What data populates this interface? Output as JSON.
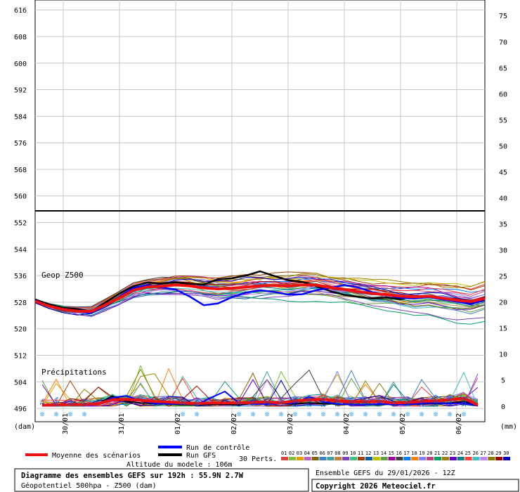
{
  "chart_data": {
    "type": "line",
    "title": "Diagramme des ensembles GEFS sur 192h : 55.9N 2.7W",
    "subtitle": "Géopotentiel 500hpa - Z500 (dam)",
    "run_label": "Ensemble GEFS du 29/01/2026 - 12Z",
    "copyright": "Copyright 2026 Meteociel.fr",
    "altitude_note": "Altitude du modele : 106m",
    "y_unit_left": "(dam)",
    "y_unit_right": "(mm)",
    "geop_label": "Geop Z500",
    "precip_label": "Précipitations",
    "left_axis": {
      "ticks": [
        496,
        504,
        512,
        520,
        528,
        536,
        544,
        552,
        560,
        568,
        576,
        584,
        592,
        600,
        608,
        616
      ],
      "range": [
        492,
        619
      ]
    },
    "right_axis": {
      "ticks": [
        0,
        5,
        10,
        15,
        20,
        25,
        30,
        35,
        40,
        45,
        50,
        55,
        60,
        65,
        70,
        75
      ],
      "range": [
        -3,
        78
      ]
    },
    "x_axis": {
      "labels": [
        "30/01",
        "31/01",
        "01/02",
        "02/02",
        "03/02",
        "04/02",
        "05/02",
        "06/02"
      ],
      "range_hours": [
        0,
        192
      ]
    },
    "grid": true,
    "legend": {
      "mean": "Moyenne des scénarios",
      "control": "Run de contrôle",
      "gfs": "Run GFS",
      "perts": "30 Perts.",
      "pert_ids": [
        "01",
        "02",
        "03",
        "04",
        "05",
        "06",
        "07",
        "08",
        "09",
        "10",
        "11",
        "12",
        "13",
        "14",
        "15",
        "16",
        "17",
        "18",
        "19",
        "20",
        "21",
        "22",
        "23",
        "24",
        "25",
        "26",
        "27",
        "28",
        "29",
        "30"
      ],
      "pert_colors": [
        "#e04040",
        "#80c040",
        "#e0a000",
        "#c060c0",
        "#806000",
        "#4080c0",
        "#40a0a0",
        "#c08040",
        "#8040c0",
        "#40c080",
        "#a04000",
        "#0060a0",
        "#c0c000",
        "#60a040",
        "#a000a0",
        "#404040",
        "#0080ff",
        "#ff8000",
        "#8080ff",
        "#c04080",
        "#00a060",
        "#a08000",
        "#6000c0",
        "#008080",
        "#ff4040",
        "#40c0c0",
        "#c080ff",
        "#808000",
        "#a00000",
        "#0000c0"
      ]
    },
    "snow": {
      "label_prefix": "❄",
      "items": [
        {
          "hour": 3,
          "pct": "3%"
        },
        {
          "hour": 9,
          "pct": "29%"
        },
        {
          "hour": 15,
          "pct": "6%"
        },
        {
          "hour": 21,
          "pct": "6%"
        },
        {
          "hour": 63,
          "pct": "3%"
        },
        {
          "hour": 69,
          "pct": "6%"
        },
        {
          "hour": 87,
          "pct": "3%"
        },
        {
          "hour": 93,
          "pct": "6%"
        },
        {
          "hour": 99,
          "pct": "16%"
        },
        {
          "hour": 105,
          "pct": "16%"
        },
        {
          "hour": 111,
          "pct": "29%"
        },
        {
          "hour": 117,
          "pct": "23%"
        },
        {
          "hour": 123,
          "pct": "23%"
        },
        {
          "hour": 129,
          "pct": "19%"
        },
        {
          "hour": 135,
          "pct": "10%"
        },
        {
          "hour": 141,
          "pct": "10%"
        },
        {
          "hour": 147,
          "pct": "16%"
        },
        {
          "hour": 153,
          "pct": "10%"
        },
        {
          "hour": 159,
          "pct": "16%"
        },
        {
          "hour": 165,
          "pct": "29%"
        },
        {
          "hour": 171,
          "pct": "26%"
        },
        {
          "hour": 177,
          "pct": "32%"
        },
        {
          "hour": 183,
          "pct": "32%"
        }
      ]
    },
    "series": [
      {
        "name": "Moyenne des scénarios",
        "color": "#ee1111",
        "x": [
          0,
          6,
          12,
          18,
          24,
          30,
          36,
          42,
          48,
          54,
          60,
          66,
          72,
          78,
          84,
          90,
          96,
          102,
          108,
          114,
          120,
          126,
          132,
          138,
          144,
          150,
          156,
          162,
          168,
          174,
          180,
          186,
          192
        ],
        "values": [
          528.3,
          526.8,
          525.8,
          525.3,
          525.2,
          527.2,
          529.3,
          531.6,
          532.6,
          532.8,
          533.2,
          532.9,
          532.3,
          532.0,
          532.2,
          532.6,
          532.9,
          533.0,
          532.9,
          533.2,
          533.2,
          532.4,
          531.8,
          531.2,
          530.6,
          530.3,
          529.8,
          529.6,
          529.8,
          529.2,
          528.6,
          528.2,
          529.1
        ]
      },
      {
        "name": "Run de contrôle",
        "color": "#0000ff",
        "x": [
          0,
          6,
          12,
          18,
          24,
          30,
          36,
          42,
          48,
          54,
          60,
          66,
          72,
          78,
          84,
          90,
          96,
          102,
          108,
          114,
          120,
          126,
          132,
          138,
          144,
          150,
          156,
          162,
          168,
          174,
          180,
          186,
          192
        ],
        "values": [
          528.6,
          526.9,
          525.6,
          525.2,
          524.7,
          527.1,
          529.7,
          532.3,
          533.2,
          532.4,
          531.8,
          529.7,
          527.1,
          527.6,
          529.5,
          530.9,
          531.6,
          531.1,
          530.3,
          530.4,
          531.6,
          532.3,
          533.2,
          532.4,
          531.0,
          530.2,
          529.3,
          529.1,
          529.5,
          528.8,
          528.2,
          527.4,
          528.7
        ]
      },
      {
        "name": "Run GFS",
        "color": "#000000",
        "x": [
          0,
          6,
          12,
          18,
          24,
          30,
          36,
          42,
          48,
          54,
          60,
          66,
          72,
          78,
          84,
          90,
          96,
          102,
          108,
          114,
          120,
          126,
          132,
          138,
          144,
          150,
          156,
          162,
          168,
          174,
          180,
          186,
          192
        ],
        "values": [
          528.8,
          527.3,
          526.3,
          525.9,
          525.2,
          527.9,
          530.6,
          532.8,
          533.9,
          533.6,
          534.0,
          533.5,
          533.3,
          534.9,
          535.2,
          536.0,
          537.3,
          535.9,
          534.6,
          534.1,
          532.9,
          531.3,
          530.2,
          529.6,
          529.1,
          529.4,
          528.9,
          529.8,
          529.9,
          529.3,
          528.6,
          527.6,
          529.4
        ]
      }
    ],
    "precip_series": [
      {
        "name": "Moyenne des scénarios",
        "color": "#ee1111",
        "x": [
          3,
          9,
          15,
          21,
          27,
          33,
          39,
          45,
          51,
          57,
          63,
          69,
          75,
          81,
          87,
          93,
          99,
          105,
          111,
          117,
          123,
          129,
          135,
          141,
          147,
          153,
          159,
          165,
          171,
          177,
          183,
          189
        ],
        "values": [
          0.2,
          0.2,
          0.3,
          0.3,
          0.5,
          1.2,
          1.3,
          1.1,
          0.9,
          0.8,
          0.6,
          0.5,
          0.6,
          0.6,
          0.6,
          0.7,
          0.8,
          0.6,
          1.0,
          1.2,
          1.3,
          1.0,
          0.9,
          0.8,
          0.9,
          0.6,
          0.7,
          0.9,
          1.0,
          1.2,
          1.5,
          0.2
        ]
      },
      {
        "name": "Run de contrôle",
        "color": "#0000ff",
        "x": [
          3,
          9,
          15,
          21,
          27,
          33,
          39,
          45,
          51,
          57,
          63,
          69,
          75,
          81,
          87,
          93,
          99,
          105,
          111,
          117,
          123,
          129,
          135,
          141,
          147,
          153,
          159,
          165,
          171,
          177,
          183,
          189
        ],
        "values": [
          0.1,
          0.1,
          0.2,
          0.2,
          0.4,
          1.6,
          2.0,
          1.0,
          0.5,
          0.4,
          0.4,
          0.3,
          1.6,
          2.8,
          0.6,
          0.4,
          0.4,
          0.5,
          0.6,
          1.8,
          0.8,
          0.4,
          0.3,
          0.3,
          0.4,
          0.3,
          0.3,
          0.5,
          0.6,
          0.5,
          0.6,
          0.2
        ]
      },
      {
        "name": "Run GFS",
        "color": "#000000",
        "x": [
          3,
          9,
          15,
          21,
          27,
          33,
          39,
          45,
          51,
          57,
          63,
          69,
          75,
          81,
          87,
          93,
          99,
          105,
          111,
          117,
          123,
          129,
          135,
          141,
          147,
          153,
          159,
          165,
          171,
          177,
          183,
          189
        ],
        "values": [
          0.2,
          0.2,
          0.3,
          0.3,
          0.5,
          1.9,
          0.9,
          0.6,
          0.5,
          0.4,
          0.3,
          0.3,
          0.4,
          0.3,
          0.3,
          0.5,
          0.6,
          0.5,
          0.4,
          0.6,
          0.5,
          0.4,
          0.3,
          0.3,
          0.3,
          0.4,
          0.3,
          0.4,
          0.5,
          0.6,
          0.9,
          0.1
        ]
      }
    ]
  }
}
